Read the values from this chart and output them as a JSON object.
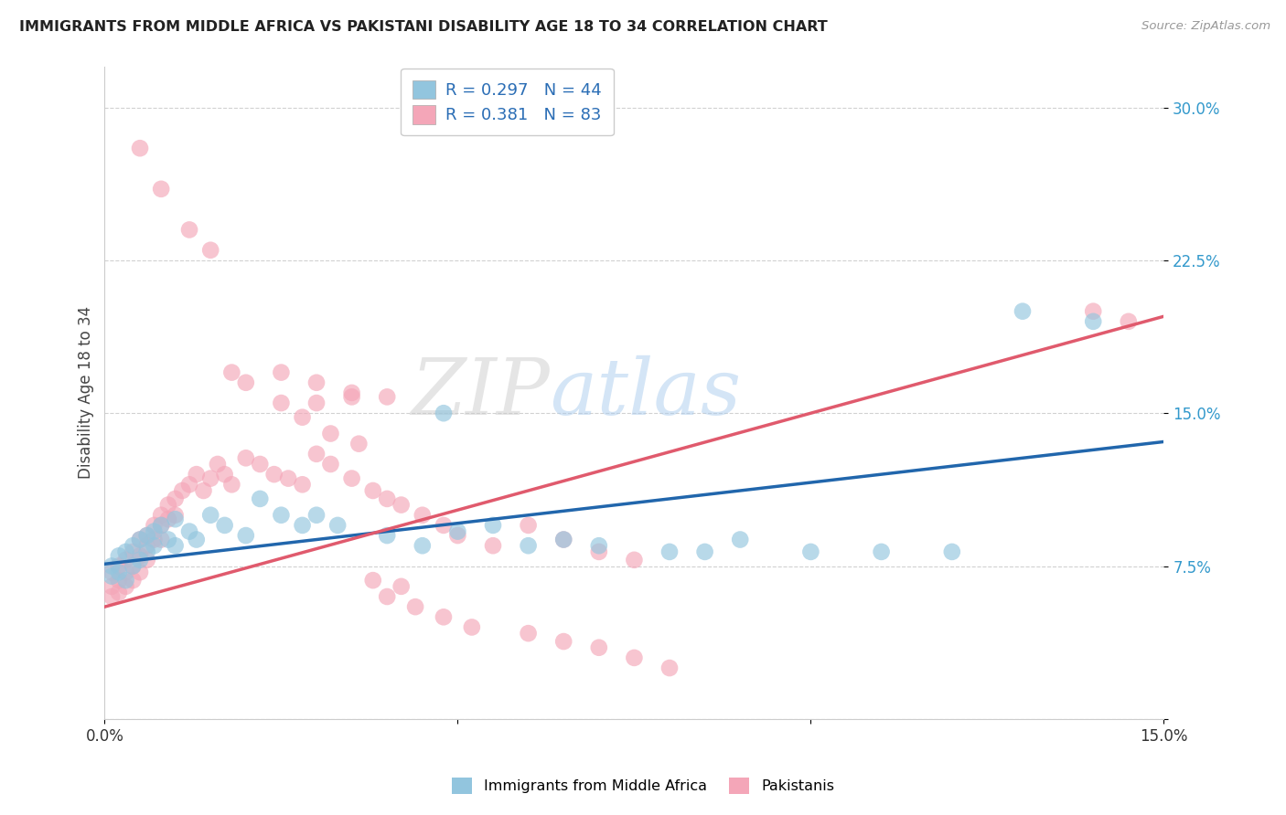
{
  "title": "IMMIGRANTS FROM MIDDLE AFRICA VS PAKISTANI DISABILITY AGE 18 TO 34 CORRELATION CHART",
  "source": "Source: ZipAtlas.com",
  "ylabel_label": "Disability Age 18 to 34",
  "xlim": [
    0.0,
    0.15
  ],
  "ylim": [
    0.0,
    0.32
  ],
  "yticks": [
    0.0,
    0.075,
    0.15,
    0.225,
    0.3
  ],
  "yticklabels": [
    "",
    "7.5%",
    "15.0%",
    "22.5%",
    "30.0%"
  ],
  "xticks": [
    0.0,
    0.05,
    0.1,
    0.15
  ],
  "xticklabels": [
    "0.0%",
    "",
    "",
    "15.0%"
  ],
  "legend_r1": "R = 0.297",
  "legend_n1": "N = 44",
  "legend_r2": "R = 0.381",
  "legend_n2": "N = 83",
  "color_blue": "#92c5de",
  "color_pink": "#f4a6b8",
  "line_color_blue": "#2166ac",
  "line_color_pink": "#e05a6d",
  "background_color": "#ffffff",
  "watermark_text": "ZIPatlas",
  "legend_label_blue": "Immigrants from Middle Africa",
  "legend_label_pink": "Pakistanis",
  "blue_intercept": 0.076,
  "blue_slope": 0.4,
  "pink_intercept": 0.055,
  "pink_slope": 0.95,
  "blue_x": [
    0.001,
    0.001,
    0.002,
    0.002,
    0.003,
    0.003,
    0.004,
    0.004,
    0.005,
    0.005,
    0.006,
    0.006,
    0.007,
    0.007,
    0.008,
    0.009,
    0.01,
    0.01,
    0.012,
    0.013,
    0.015,
    0.017,
    0.02,
    0.022,
    0.025,
    0.028,
    0.03,
    0.033,
    0.04,
    0.045,
    0.05,
    0.06,
    0.065,
    0.07,
    0.08,
    0.085,
    0.09,
    0.1,
    0.11,
    0.12,
    0.048,
    0.055,
    0.13,
    0.14
  ],
  "blue_y": [
    0.075,
    0.07,
    0.08,
    0.072,
    0.082,
    0.068,
    0.085,
    0.075,
    0.088,
    0.078,
    0.09,
    0.082,
    0.092,
    0.085,
    0.095,
    0.088,
    0.098,
    0.085,
    0.092,
    0.088,
    0.1,
    0.095,
    0.09,
    0.108,
    0.1,
    0.095,
    0.1,
    0.095,
    0.09,
    0.085,
    0.092,
    0.085,
    0.088,
    0.085,
    0.082,
    0.082,
    0.088,
    0.082,
    0.082,
    0.082,
    0.15,
    0.095,
    0.2,
    0.195
  ],
  "pink_x": [
    0.001,
    0.001,
    0.001,
    0.002,
    0.002,
    0.002,
    0.003,
    0.003,
    0.003,
    0.004,
    0.004,
    0.004,
    0.005,
    0.005,
    0.005,
    0.006,
    0.006,
    0.006,
    0.007,
    0.007,
    0.008,
    0.008,
    0.008,
    0.009,
    0.009,
    0.01,
    0.01,
    0.011,
    0.012,
    0.013,
    0.014,
    0.015,
    0.016,
    0.017,
    0.018,
    0.02,
    0.022,
    0.024,
    0.026,
    0.028,
    0.03,
    0.032,
    0.035,
    0.038,
    0.04,
    0.042,
    0.045,
    0.048,
    0.03,
    0.035,
    0.04,
    0.025,
    0.03,
    0.035,
    0.05,
    0.055,
    0.06,
    0.065,
    0.07,
    0.075,
    0.005,
    0.008,
    0.012,
    0.015,
    0.018,
    0.02,
    0.025,
    0.028,
    0.032,
    0.036,
    0.04,
    0.044,
    0.048,
    0.052,
    0.06,
    0.065,
    0.07,
    0.075,
    0.08,
    0.14,
    0.038,
    0.042,
    0.145
  ],
  "pink_y": [
    0.072,
    0.065,
    0.06,
    0.075,
    0.068,
    0.062,
    0.078,
    0.072,
    0.065,
    0.082,
    0.075,
    0.068,
    0.088,
    0.08,
    0.072,
    0.09,
    0.085,
    0.078,
    0.095,
    0.088,
    0.1,
    0.095,
    0.088,
    0.105,
    0.098,
    0.108,
    0.1,
    0.112,
    0.115,
    0.12,
    0.112,
    0.118,
    0.125,
    0.12,
    0.115,
    0.128,
    0.125,
    0.12,
    0.118,
    0.115,
    0.13,
    0.125,
    0.118,
    0.112,
    0.108,
    0.105,
    0.1,
    0.095,
    0.155,
    0.16,
    0.158,
    0.17,
    0.165,
    0.158,
    0.09,
    0.085,
    0.095,
    0.088,
    0.082,
    0.078,
    0.28,
    0.26,
    0.24,
    0.23,
    0.17,
    0.165,
    0.155,
    0.148,
    0.14,
    0.135,
    0.06,
    0.055,
    0.05,
    0.045,
    0.042,
    0.038,
    0.035,
    0.03,
    0.025,
    0.2,
    0.068,
    0.065,
    0.195
  ]
}
